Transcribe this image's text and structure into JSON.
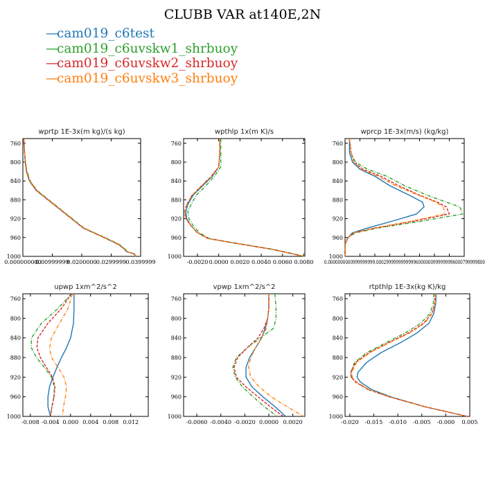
{
  "page": {
    "title": "CLUBB VAR at140E,2N"
  },
  "legend": [
    {
      "label": "cam019_c6test",
      "color": "#1f77b4",
      "symbol": "—"
    },
    {
      "label": "cam019_c6uvskw1_shrbuoy",
      "color": "#2ca02c",
      "symbol": "—"
    },
    {
      "label": "cam019_c6uvskw2_shrbuoy",
      "color": "#d62728",
      "symbol": "—"
    },
    {
      "label": "cam019_c6uvskw3_shrbuoy",
      "color": "#ff7f0e",
      "symbol": "—"
    }
  ],
  "chart_data": [
    {
      "type": "line",
      "title": "wprtp   1E-3x(m kg)/(s kg)",
      "xlim": [
        0,
        0.04
      ],
      "ylim": [
        1000,
        750
      ],
      "xticks": [
        0,
        0.01,
        0.02,
        0.03,
        0.04
      ],
      "xtick_labels": [
        "0.000000000",
        "0.00999999",
        "0.0200000",
        "0.0299999",
        "0.0399999"
      ],
      "yticks": [
        760,
        800,
        840,
        880,
        920,
        960,
        1000
      ],
      "y": [
        750,
        760,
        780,
        800,
        820,
        840,
        860,
        880,
        900,
        920,
        940,
        960,
        975,
        985,
        990,
        995,
        1000
      ],
      "series": [
        {
          "name": "cam019_c6test",
          "color": "#1f77b4",
          "dash": "solid",
          "x": [
            0.0003,
            0.0004,
            0.0006,
            0.0008,
            0.0012,
            0.0022,
            0.0045,
            0.0085,
            0.0125,
            0.0165,
            0.0205,
            0.0275,
            0.0325,
            0.0345,
            0.0352,
            0.0378,
            0.0382
          ]
        },
        {
          "name": "cam019_c6uvskw1_shrbuoy",
          "color": "#2ca02c",
          "dash": "dashdot",
          "x": [
            0.0003,
            0.0004,
            0.0006,
            0.0009,
            0.0014,
            0.0025,
            0.0048,
            0.0088,
            0.0128,
            0.0168,
            0.0208,
            0.0279,
            0.0329,
            0.0348,
            0.0355,
            0.038,
            0.0384
          ]
        },
        {
          "name": "cam019_c6uvskw2_shrbuoy",
          "color": "#d62728",
          "dash": "dashed",
          "x": [
            0.0003,
            0.0004,
            0.0006,
            0.0008,
            0.0013,
            0.0023,
            0.0046,
            0.0086,
            0.0126,
            0.0166,
            0.0206,
            0.0276,
            0.0326,
            0.0346,
            0.0353,
            0.0379,
            0.0383
          ]
        },
        {
          "name": "cam019_c6uvskw3_shrbuoy",
          "color": "#ff7f0e",
          "dash": "dashdot",
          "x": [
            0.0003,
            0.0004,
            0.0006,
            0.0008,
            0.0012,
            0.0022,
            0.0045,
            0.0085,
            0.0125,
            0.0165,
            0.0206,
            0.0276,
            0.0326,
            0.0346,
            0.0353,
            0.0379,
            0.0383
          ]
        }
      ]
    },
    {
      "type": "line",
      "title": "wpthlp   1x(m K)/s",
      "xlim": [
        -0.0033,
        0.0081
      ],
      "ylim": [
        1000,
        750
      ],
      "xticks": [
        -0.002,
        0,
        0.002,
        0.004,
        0.006,
        0.008
      ],
      "xtick_labels": [
        "-0.0020",
        "0.0000",
        "0.0020",
        "0.0040",
        "0.0060",
        "0.0080"
      ],
      "yticks": [
        760,
        800,
        840,
        880,
        920,
        960,
        1000
      ],
      "y": [
        750,
        780,
        810,
        830,
        850,
        870,
        890,
        905,
        920,
        935,
        950,
        962,
        970,
        985,
        1000
      ],
      "series": [
        {
          "name": "cam019_c6test",
          "color": "#1f77b4",
          "dash": "solid",
          "x": [
            0.0001,
            0.0001,
            0.0,
            -0.0006,
            -0.0015,
            -0.0024,
            -0.0029,
            -0.0031,
            -0.003,
            -0.0026,
            -0.002,
            -0.001,
            0.001,
            0.005,
            0.008
          ]
        },
        {
          "name": "cam019_c6uvskw1_shrbuoy",
          "color": "#2ca02c",
          "dash": "dashdot",
          "x": [
            0.0002,
            0.0002,
            0.0002,
            -0.0004,
            -0.0012,
            -0.0021,
            -0.0026,
            -0.0029,
            -0.0028,
            -0.0024,
            -0.0018,
            -0.0009,
            0.0011,
            0.0051,
            0.0081
          ]
        },
        {
          "name": "cam019_c6uvskw2_shrbuoy",
          "color": "#d62728",
          "dash": "dashed",
          "x": [
            0.0001,
            0.0001,
            0.0,
            -0.0007,
            -0.0016,
            -0.0025,
            -0.003,
            -0.0032,
            -0.0031,
            -0.0026,
            -0.002,
            -0.001,
            0.001,
            0.005,
            0.008
          ]
        },
        {
          "name": "cam019_c6uvskw3_shrbuoy",
          "color": "#ff7f0e",
          "dash": "dashdot",
          "x": [
            0.0001,
            0.0001,
            0.0,
            -0.0007,
            -0.0016,
            -0.0025,
            -0.003,
            -0.0032,
            -0.0031,
            -0.0026,
            -0.002,
            -0.001,
            0.001,
            0.005,
            0.008
          ]
        }
      ]
    },
    {
      "type": "line",
      "title": "wprcp   1E-3x(m/s) (kg/kg)",
      "xlim": [
        0,
        0.0008
      ],
      "ylim": [
        1000,
        750
      ],
      "xticks": [
        0,
        0.0001,
        0.0002,
        0.0003,
        0.0004,
        0.0005,
        0.0006,
        0.0007,
        0.0008
      ],
      "xtick_labels": [
        "0.000000000",
        "0.0001",
        "0.0002",
        "0.0003",
        "0.0004",
        "0.0005",
        "0.0006",
        "0.0007",
        "0.0008"
      ],
      "xtick_text": "0.0000000000999999999.00029999999999996000000999999996000799999800",
      "yticks": [
        760,
        800,
        840,
        880,
        920,
        960,
        1000
      ],
      "y": [
        750,
        780,
        800,
        815,
        830,
        850,
        870,
        885,
        895,
        910,
        925,
        940,
        950,
        960,
        975,
        1000
      ],
      "series": [
        {
          "name": "cam019_c6test",
          "color": "#1f77b4",
          "dash": "solid",
          "x": [
            3e-05,
            3e-05,
            5e-05,
            0.0001,
            0.0002,
            0.0003,
            0.00043,
            0.00052,
            0.00053,
            0.00048,
            0.00032,
            0.00015,
            5e-05,
            2e-05,
            0.0,
            0.0
          ]
        },
        {
          "name": "cam019_c6uvskw1_shrbuoy",
          "color": "#2ca02c",
          "dash": "dashdot",
          "x": [
            3e-05,
            4e-05,
            7e-05,
            0.00015,
            0.00028,
            0.0004,
            0.00055,
            0.00068,
            0.00077,
            0.00079,
            0.00052,
            0.00022,
            7e-05,
            2e-05,
            0.0,
            0.0
          ]
        },
        {
          "name": "cam019_c6uvskw2_shrbuoy",
          "color": "#d62728",
          "dash": "dashed",
          "x": [
            3e-05,
            4e-05,
            6e-05,
            0.00012,
            0.00024,
            0.00036,
            0.0005,
            0.00062,
            0.00068,
            0.0007,
            0.00047,
            0.0002,
            6e-05,
            2e-05,
            0.0,
            0.0
          ]
        },
        {
          "name": "cam019_c6uvskw3_shrbuoy",
          "color": "#ff7f0e",
          "dash": "dashdot",
          "x": [
            3e-05,
            4e-05,
            6e-05,
            0.00011,
            0.00022,
            0.00034,
            0.00049,
            0.00061,
            0.00066,
            0.00067,
            0.00045,
            0.00019,
            6e-05,
            2e-05,
            0.0,
            0.0
          ]
        }
      ]
    },
    {
      "type": "line",
      "title": "upwp   1xm^2/s^2",
      "xlim": [
        -0.0095,
        0.0155
      ],
      "ylim": [
        1000,
        750
      ],
      "xticks": [
        -0.008,
        -0.004,
        0,
        0.004,
        0.008,
        0.012
      ],
      "xtick_labels": [
        "-0.008",
        "-0.004",
        "0.000",
        "0.004",
        "0.008",
        "0.012"
      ],
      "yticks": [
        760,
        800,
        840,
        880,
        920,
        960,
        1000
      ],
      "y": [
        750,
        780,
        810,
        840,
        860,
        880,
        900,
        920,
        940,
        960,
        980,
        1000
      ],
      "series": [
        {
          "name": "cam019_c6test",
          "color": "#1f77b4",
          "dash": "solid",
          "x": [
            0.0007,
            0.0007,
            0.0006,
            0.0,
            -0.0008,
            -0.0018,
            -0.0027,
            -0.0035,
            -0.0042,
            -0.0045,
            -0.0045,
            -0.004
          ]
        },
        {
          "name": "cam019_c6uvskw1_shrbuoy",
          "color": "#2ca02c",
          "dash": "dashdot",
          "x": [
            0.0002,
            -0.0025,
            -0.0058,
            -0.0078,
            -0.0078,
            -0.0068,
            -0.0052,
            -0.0038,
            -0.0032,
            -0.0033,
            -0.0037,
            -0.004
          ]
        },
        {
          "name": "cam019_c6uvskw2_shrbuoy",
          "color": "#d62728",
          "dash": "dashed",
          "x": [
            0.0002,
            -0.0018,
            -0.0045,
            -0.0065,
            -0.0067,
            -0.006,
            -0.0048,
            -0.0036,
            -0.0031,
            -0.0033,
            -0.0037,
            -0.004
          ]
        },
        {
          "name": "cam019_c6uvskw3_shrbuoy",
          "color": "#ff7f0e",
          "dash": "dashdot",
          "x": [
            0.0004,
            -0.0005,
            -0.0022,
            -0.0038,
            -0.0042,
            -0.0038,
            -0.0025,
            -0.0013,
            -0.0008,
            -0.001,
            -0.0014,
            -0.0016
          ]
        }
      ]
    },
    {
      "type": "line",
      "title": "vpwp   1xm^2/s^2",
      "xlim": [
        -0.0071,
        0.003
      ],
      "ylim": [
        1000,
        750
      ],
      "xticks": [
        -0.006,
        -0.004,
        -0.002,
        0,
        0.002
      ],
      "xtick_labels": [
        "-0.0060",
        "-0.0040",
        "-0.0020",
        "0.0000",
        "0.0020"
      ],
      "yticks": [
        760,
        800,
        840,
        880,
        920,
        960,
        1000
      ],
      "y": [
        750,
        780,
        800,
        820,
        840,
        860,
        880,
        900,
        920,
        940,
        960,
        980,
        1000
      ],
      "series": [
        {
          "name": "cam019_c6test",
          "color": "#1f77b4",
          "dash": "solid",
          "x": [
            0.0,
            0.0,
            -0.0001,
            -0.0003,
            -0.0006,
            -0.0011,
            -0.0016,
            -0.0019,
            -0.0019,
            -0.0014,
            -0.0005,
            0.0005,
            0.0014
          ]
        },
        {
          "name": "cam019_c6uvskw1_shrbuoy",
          "color": "#2ca02c",
          "dash": "dashdot",
          "x": [
            0.0005,
            0.0006,
            0.0006,
            0.0004,
            -0.0007,
            -0.0018,
            -0.0027,
            -0.003,
            -0.0028,
            -0.0022,
            -0.0013,
            -0.0004,
            0.0007
          ]
        },
        {
          "name": "cam019_c6uvskw2_shrbuoy",
          "color": "#d62728",
          "dash": "dashed",
          "x": [
            0.0,
            0.0,
            -0.0001,
            -0.0004,
            -0.0009,
            -0.0018,
            -0.0026,
            -0.0029,
            -0.0027,
            -0.0019,
            -0.0009,
            0.0001,
            0.0012
          ]
        },
        {
          "name": "cam019_c6uvskw3_shrbuoy",
          "color": "#ff7f0e",
          "dash": "dashdot",
          "x": [
            0.0,
            0.0,
            -0.0001,
            -0.0002,
            -0.0006,
            -0.0011,
            -0.0015,
            -0.0017,
            -0.0015,
            -0.0008,
            0.0002,
            0.0015,
            0.0029
          ]
        }
      ]
    },
    {
      "type": "line",
      "title": "rtpthlp   1E-3x(kg K)/kg",
      "xlim": [
        -0.021,
        0.005
      ],
      "ylim": [
        1000,
        750
      ],
      "xticks": [
        -0.02,
        -0.015,
        -0.01,
        -0.005,
        0,
        0.005
      ],
      "xtick_labels": [
        "-0.020",
        "-0.015",
        "-0.010",
        "-0.005",
        "-0.000",
        "0.005"
      ],
      "yticks": [
        760,
        800,
        840,
        880,
        920,
        960,
        1000
      ],
      "y": [
        750,
        770,
        790,
        810,
        830,
        850,
        870,
        890,
        910,
        920,
        930,
        945,
        960,
        980,
        1000
      ],
      "series": [
        {
          "name": "cam019_c6test",
          "color": "#1f77b4",
          "dash": "solid",
          "x": [
            -0.002,
            -0.0021,
            -0.0025,
            -0.0035,
            -0.006,
            -0.0095,
            -0.0135,
            -0.0165,
            -0.0183,
            -0.0185,
            -0.0178,
            -0.0155,
            -0.0115,
            -0.0045,
            0.0045
          ]
        },
        {
          "name": "cam019_c6uvskw1_shrbuoy",
          "color": "#2ca02c",
          "dash": "dashdot",
          "x": [
            -0.0025,
            -0.0026,
            -0.0033,
            -0.0052,
            -0.0085,
            -0.0125,
            -0.0165,
            -0.019,
            -0.0198,
            -0.0197,
            -0.0188,
            -0.0162,
            -0.0118,
            -0.0045,
            0.0045
          ]
        },
        {
          "name": "cam019_c6uvskw2_shrbuoy",
          "color": "#d62728",
          "dash": "dashed",
          "x": [
            -0.0022,
            -0.0023,
            -0.0029,
            -0.0046,
            -0.0078,
            -0.012,
            -0.016,
            -0.0188,
            -0.0198,
            -0.0197,
            -0.0188,
            -0.0162,
            -0.0118,
            -0.0045,
            0.0045
          ]
        },
        {
          "name": "cam019_c6uvskw3_shrbuoy",
          "color": "#ff7f0e",
          "dash": "dashdot",
          "x": [
            -0.0021,
            -0.0022,
            -0.0028,
            -0.0044,
            -0.0075,
            -0.0118,
            -0.0158,
            -0.0186,
            -0.0196,
            -0.0195,
            -0.0186,
            -0.016,
            -0.0117,
            -0.0045,
            0.0045
          ]
        }
      ]
    }
  ]
}
